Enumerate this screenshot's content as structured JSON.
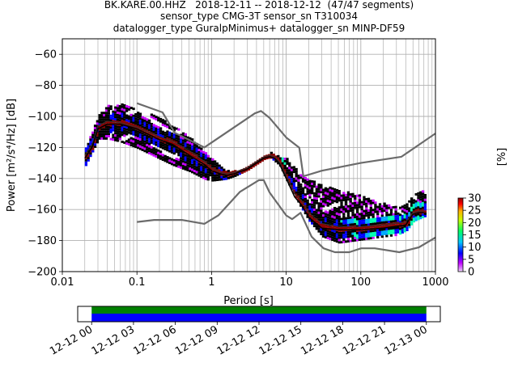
{
  "title_lines": [
    "BK.KARE.00.HHZ   2018-12-11 -- 2018-12-12  (47/47 segments)",
    "sensor_type CMG-3T sensor_sn T310034",
    "datalogger_type GuralpMinimus+ datalogger_sn MINP-DF59"
  ],
  "chart_data": {
    "type": "heatmap",
    "xlabel": "Period [s]",
    "ylabel": "Power [m²/s⁴/Hz] [dB]",
    "x_scale": "log",
    "xlim": [
      0.01,
      1000
    ],
    "ylim": [
      -200,
      -50
    ],
    "x_ticks": [
      0.01,
      0.1,
      1,
      10,
      100,
      1000
    ],
    "x_tick_labels": [
      "0.01",
      "0.1",
      "1",
      "10",
      "100",
      "1000"
    ],
    "y_ticks": [
      -200,
      -180,
      -160,
      -140,
      -120,
      -100,
      -80,
      -60
    ],
    "y_tick_labels": [
      "−200",
      "−180",
      "−160",
      "−140",
      "−120",
      "−100",
      "−80",
      "−60"
    ],
    "grid": true,
    "colorbar": {
      "label": "[%]",
      "range": [
        0,
        30
      ],
      "ticks": [
        0,
        5,
        10,
        15,
        20,
        25,
        30
      ],
      "tick_labels": [
        "0",
        "5",
        "10",
        "15",
        "20",
        "25",
        "30"
      ]
    },
    "noise_model_high": {
      "x": [
        0.1,
        0.22,
        0.32,
        0.8,
        3.8,
        4.6,
        6.0,
        10,
        15,
        17,
        30,
        100,
        350,
        1000
      ],
      "y": [
        -91.5,
        -97.4,
        -110.5,
        -120,
        -98,
        -96.5,
        -101,
        -113.6,
        -120.2,
        -138.6,
        -135,
        -130,
        -126,
        -111
      ]
    },
    "noise_model_low": {
      "x": [
        0.1,
        0.17,
        0.4,
        0.8,
        1.24,
        2.4,
        4.3,
        5.0,
        6.0,
        10,
        12,
        15.6,
        21.9,
        31.6,
        45,
        70,
        101,
        154,
        328,
        600,
        1000
      ],
      "y": [
        -168,
        -166.7,
        -166.7,
        -169.2,
        -163.7,
        -148.6,
        -141.1,
        -141.1,
        -149,
        -163.8,
        -166.2,
        -162.1,
        -177.5,
        -185,
        -187.5,
        -187.5,
        -185,
        -185,
        -187.5,
        -184.4,
        -178
      ]
    },
    "mode_curve": {
      "x": [
        0.02,
        0.025,
        0.03,
        0.04,
        0.06,
        0.1,
        0.2,
        0.3,
        0.5,
        0.8,
        1,
        1.3,
        1.6,
        2,
        3,
        4,
        5,
        6,
        7,
        8,
        10,
        13,
        16,
        20,
        30,
        50,
        100,
        200,
        400,
        500,
        600,
        700
      ],
      "y": [
        -127,
        -120,
        -108,
        -105,
        -105,
        -108,
        -115,
        -118,
        -125,
        -131,
        -135,
        -137,
        -138,
        -137,
        -134,
        -130,
        -127,
        -126,
        -127,
        -130,
        -140,
        -152,
        -157,
        -165,
        -172,
        -173,
        -173,
        -172,
        -170,
        -163,
        -162,
        -162
      ]
    },
    "mean_curve": {
      "x": [
        0.02,
        0.025,
        0.03,
        0.04,
        0.06,
        0.1,
        0.2,
        0.3,
        0.5,
        0.8,
        1,
        1.3,
        1.6,
        2,
        3,
        4,
        5,
        6,
        7,
        8,
        10,
        13,
        16,
        20,
        30,
        50,
        100,
        200,
        400,
        500,
        600,
        700
      ],
      "y": [
        -125,
        -118,
        -106,
        -103,
        -104,
        -107,
        -113,
        -116,
        -122,
        -129,
        -133,
        -136,
        -137,
        -136,
        -133,
        -129,
        -126,
        -125,
        -126,
        -129,
        -138,
        -150,
        -154,
        -162,
        -169,
        -171,
        -171,
        -170,
        -168,
        -162,
        -161,
        -161
      ]
    },
    "psd_spread": {
      "x": [
        0.02,
        0.03,
        0.04,
        0.06,
        0.1,
        0.2,
        0.3,
        0.5,
        0.8,
        1,
        1.5,
        2,
        3,
        5,
        6,
        8,
        10,
        15,
        20,
        30,
        50,
        100,
        200,
        300,
        400,
        500,
        700
      ],
      "y_low": [
        -132,
        -115,
        -115,
        -117,
        -121,
        -128,
        -132,
        -136,
        -141,
        -142,
        -141,
        -139,
        -135,
        -128,
        -127,
        -132,
        -142,
        -158,
        -168,
        -178,
        -182,
        -180,
        -178,
        -177,
        -174,
        -168,
        -165
      ],
      "y_high": [
        -121,
        -100,
        -94,
        -93,
        -96,
        -102,
        -107,
        -114,
        -124,
        -128,
        -135,
        -136,
        -133,
        -126,
        -124,
        -127,
        -128,
        -138,
        -141,
        -145,
        -148,
        -152,
        -157,
        -159,
        -157,
        -150,
        -148
      ]
    },
    "timeline": {
      "tick_labels": [
        "12-12 00",
        "12-12 03",
        "12-12 06",
        "12-12 09",
        "12-12 12",
        "12-12 15",
        "12-12 18",
        "12-12 21",
        "12-13 00"
      ],
      "coverage_start_hours": 0,
      "coverage_end_hours": 24,
      "range_hours": [
        -1,
        25
      ],
      "bands": [
        {
          "name": "data",
          "color": "#0000ff"
        },
        {
          "name": "segments",
          "color": "#008000"
        }
      ]
    },
    "colors": {
      "noise_model": "#6b6b6b",
      "mode": "#000000",
      "grid": "#b0b0b0"
    }
  }
}
